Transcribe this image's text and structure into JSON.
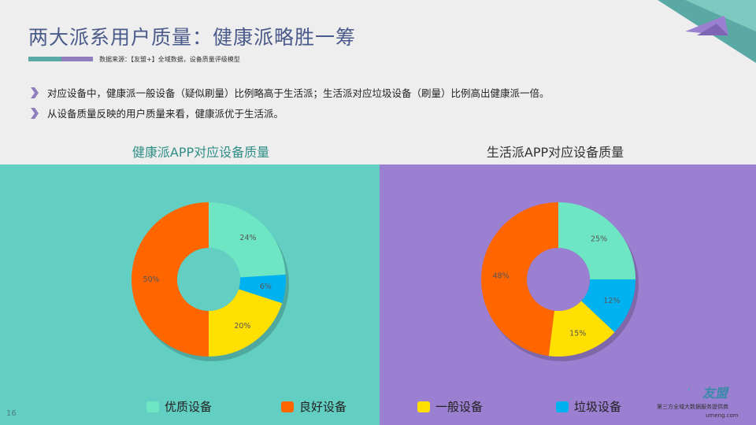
{
  "page": {
    "title": "两大派系用户质量：健康派略胜一筹",
    "source": "数据来源：【友盟+】全域数据，设备质量评级模型",
    "page_number": "16"
  },
  "bullets": [
    "对应设备中，健康派一般设备（疑似刷量）比例略高于生活派；生活派对应垃圾设备（刷量）比例高出健康派一倍。",
    "从设备质量反映的用户质量来看，健康派优于生活派。"
  ],
  "colors": {
    "teal_panel": "#62cfc2",
    "purple_panel": "#9b7fd0",
    "excellent": "#6ee6c4",
    "good": "#ff6600",
    "normal": "#ffe000",
    "garbage": "#00b3f0"
  },
  "legend": [
    {
      "label": "优质设备",
      "color": "#6ee6c4"
    },
    {
      "label": "良好设备",
      "color": "#ff6600"
    },
    {
      "label": "一般设备",
      "color": "#ffe000"
    },
    {
      "label": "垃圾设备",
      "color": "#00b3f0"
    }
  ],
  "chart_data": [
    {
      "type": "pie",
      "title": "健康派APP对应设备质量",
      "categories": [
        "优质设备",
        "垃圾设备",
        "一般设备",
        "良好设备"
      ],
      "values": [
        24,
        6,
        20,
        50
      ],
      "labels": [
        "24%",
        "6%",
        "20%",
        "50%"
      ]
    },
    {
      "type": "pie",
      "title": "生活派APP对应设备质量",
      "categories": [
        "优质设备",
        "垃圾设备",
        "一般设备",
        "良好设备"
      ],
      "values": [
        25,
        12,
        15,
        48
      ],
      "labels": [
        "25%",
        "12%",
        "15%",
        "48%"
      ]
    }
  ],
  "branding": {
    "logo_text": "友盟",
    "provider": "第三方全域大数据服务提供商",
    "site": "umeng.com"
  }
}
